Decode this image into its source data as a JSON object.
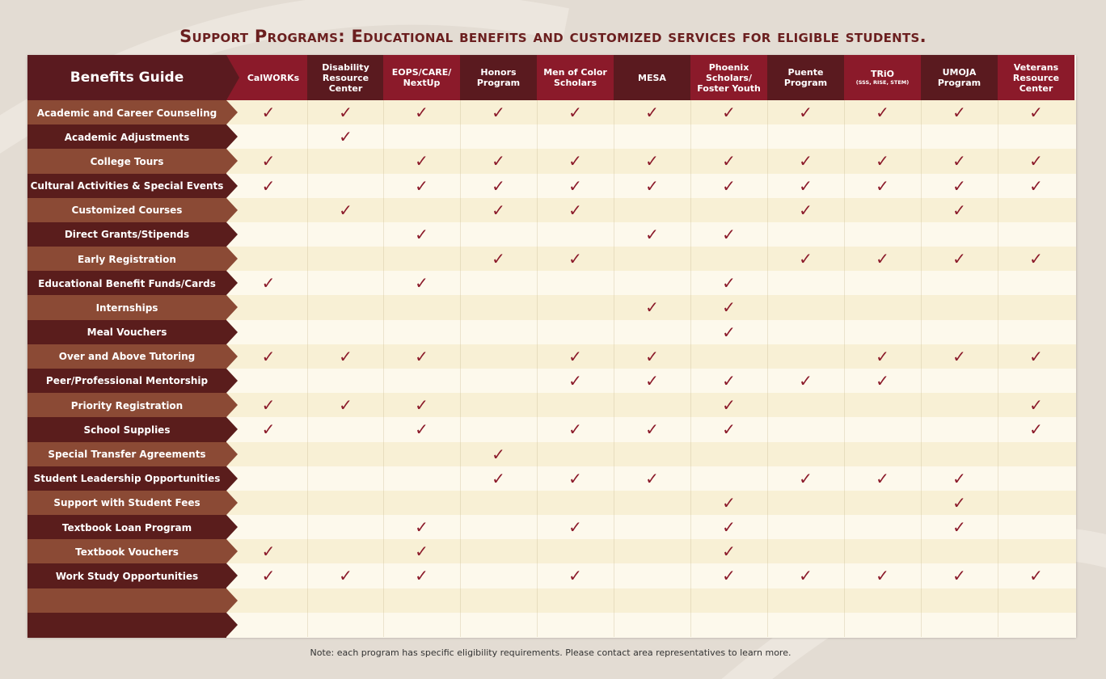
{
  "title": "Support Programs:  Educational benefits and customized services for eligible students.",
  "header_label": "Benefits Guide",
  "programs": [
    {
      "lines": [
        "CalWORKs"
      ],
      "small": ""
    },
    {
      "lines": [
        "Disability",
        "Resource",
        "Center"
      ],
      "small": ""
    },
    {
      "lines": [
        "EOPS/CARE/",
        "NextUp"
      ],
      "small": ""
    },
    {
      "lines": [
        "Honors",
        "Program"
      ],
      "small": ""
    },
    {
      "lines": [
        "Men of Color",
        "Scholars"
      ],
      "small": ""
    },
    {
      "lines": [
        "MESA"
      ],
      "small": ""
    },
    {
      "lines": [
        "Phoenix",
        "Scholars/",
        "Foster Youth"
      ],
      "small": ""
    },
    {
      "lines": [
        "Puente",
        "Program"
      ],
      "small": ""
    },
    {
      "lines": [
        "TRiO"
      ],
      "small": "(SSS, RISE, STEM)"
    },
    {
      "lines": [
        "UMOJA",
        "Program"
      ],
      "small": ""
    },
    {
      "lines": [
        "Veterans",
        "Resource",
        "Center"
      ],
      "small": ""
    }
  ],
  "check_symbol": "✓",
  "rows": [
    {
      "label": "Academic and Career Counseling",
      "checks": [
        1,
        1,
        1,
        1,
        1,
        1,
        1,
        1,
        1,
        1,
        1
      ]
    },
    {
      "label": "Academic Adjustments",
      "checks": [
        0,
        1,
        0,
        0,
        0,
        0,
        0,
        0,
        0,
        0,
        0
      ]
    },
    {
      "label": "College Tours",
      "checks": [
        1,
        0,
        1,
        1,
        1,
        1,
        1,
        1,
        1,
        1,
        1
      ]
    },
    {
      "label": "Cultural Activities & Special Events",
      "checks": [
        1,
        0,
        1,
        1,
        1,
        1,
        1,
        1,
        1,
        1,
        1
      ]
    },
    {
      "label": "Customized Courses",
      "checks": [
        0,
        1,
        0,
        1,
        1,
        0,
        0,
        1,
        0,
        1,
        0
      ]
    },
    {
      "label": "Direct Grants/Stipends",
      "checks": [
        0,
        0,
        1,
        0,
        0,
        1,
        1,
        0,
        0,
        0,
        0
      ]
    },
    {
      "label": "Early Registration",
      "checks": [
        0,
        0,
        0,
        1,
        1,
        0,
        0,
        1,
        1,
        1,
        1
      ]
    },
    {
      "label": "Educational Benefit Funds/Cards",
      "checks": [
        1,
        0,
        1,
        0,
        0,
        0,
        1,
        0,
        0,
        0,
        0
      ]
    },
    {
      "label": "Internships",
      "checks": [
        0,
        0,
        0,
        0,
        0,
        1,
        1,
        0,
        0,
        0,
        0
      ]
    },
    {
      "label": "Meal Vouchers",
      "checks": [
        0,
        0,
        0,
        0,
        0,
        0,
        1,
        0,
        0,
        0,
        0
      ]
    },
    {
      "label": "Over and Above Tutoring",
      "checks": [
        1,
        1,
        1,
        0,
        1,
        1,
        0,
        0,
        1,
        1,
        1
      ]
    },
    {
      "label": "Peer/Professional Mentorship",
      "checks": [
        0,
        0,
        0,
        0,
        1,
        1,
        1,
        1,
        1,
        0,
        0
      ]
    },
    {
      "label": "Priority Registration",
      "checks": [
        1,
        1,
        1,
        0,
        0,
        0,
        1,
        0,
        0,
        0,
        1
      ]
    },
    {
      "label": "School Supplies",
      "checks": [
        1,
        0,
        1,
        0,
        1,
        1,
        1,
        0,
        0,
        0,
        1
      ]
    },
    {
      "label": "Special Transfer Agreements",
      "checks": [
        0,
        0,
        0,
        1,
        0,
        0,
        0,
        0,
        0,
        0,
        0
      ]
    },
    {
      "label": "Student Leadership Opportunities",
      "checks": [
        0,
        0,
        0,
        1,
        1,
        1,
        0,
        1,
        1,
        1,
        0
      ]
    },
    {
      "label": "Support with Student Fees",
      "checks": [
        0,
        0,
        0,
        0,
        0,
        0,
        1,
        0,
        0,
        1,
        0
      ]
    },
    {
      "label": "Textbook Loan Program",
      "checks": [
        0,
        0,
        1,
        0,
        1,
        0,
        1,
        0,
        0,
        1,
        0
      ]
    },
    {
      "label": "Textbook Vouchers",
      "checks": [
        1,
        0,
        1,
        0,
        0,
        0,
        1,
        0,
        0,
        0,
        0
      ]
    },
    {
      "label": "Work Study Opportunities",
      "checks": [
        1,
        1,
        1,
        0,
        1,
        0,
        1,
        1,
        1,
        1,
        1
      ]
    },
    {
      "label": "",
      "checks": [
        0,
        0,
        0,
        0,
        0,
        0,
        0,
        0,
        0,
        0,
        0
      ]
    },
    {
      "label": "",
      "checks": [
        0,
        0,
        0,
        0,
        0,
        0,
        0,
        0,
        0,
        0,
        0
      ]
    }
  ],
  "colors": {
    "header_dark": "#5a1a1f",
    "header_red": "#8b1a2a",
    "row_light_label": "#8b4a35",
    "row_dark_label": "#5a1d1c",
    "row_bg_a": "#f8f0d5",
    "row_bg_b": "#fdf9ec",
    "check": "#8b1a2a"
  },
  "note": "Note: each program has specific eligibility requirements.  Please contact area representatives to learn more."
}
